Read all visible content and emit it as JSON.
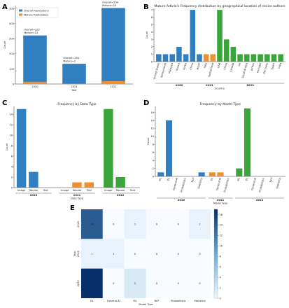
{
  "figure": {
    "panel_letters": [
      "A",
      "B",
      "C",
      "D",
      "E"
    ]
  },
  "chart_data": [
    {
      "id": "A",
      "type": "bar",
      "title": "",
      "xlabel": "Year",
      "ylabel": "Count",
      "categories": [
        "2020",
        "2021",
        "2022"
      ],
      "series": [
        {
          "name": "Overall Publications",
          "values": [
            322,
            134,
            504
          ],
          "color": "#2f7fc1"
        },
        {
          "name": "Mature Publications",
          "values": [
            15,
            2,
            19
          ],
          "color": "#f28e2b"
        }
      ],
      "annotations": [
        [
          "Overall=322",
          "Mature=15"
        ],
        [
          "Overall=134",
          "Mature=2"
        ],
        [
          "Overall=504",
          "Mature=19"
        ]
      ],
      "ylim": [
        0,
        520
      ],
      "yticks": [
        0,
        100,
        200,
        300,
        400,
        500
      ],
      "legend": "top-left"
    },
    {
      "id": "B",
      "type": "bar",
      "title": "Mature Article's Frequency distribution by geographical location of senior authors",
      "xlabel": "Country",
      "ylabel": "Count",
      "ylim": [
        0,
        7.2
      ],
      "yticks": [
        0,
        1,
        2,
        3,
        4,
        5,
        6,
        7
      ],
      "groups": [
        {
          "year": "2020",
          "color": "#2f7fc1",
          "categories": [
            "United States",
            "Netherlands",
            "Malaysia",
            "Russia",
            "Korea",
            "China",
            "Brazil"
          ],
          "values": [
            1,
            1,
            1,
            2,
            1,
            7,
            1
          ]
        },
        {
          "year": "2021",
          "color": "#f28e2b",
          "categories": [
            "Italy",
            "Switzerland"
          ],
          "values": [
            1,
            1
          ]
        },
        {
          "year": "2022",
          "color": "#3aa63a",
          "categories": [
            "USA",
            "China",
            "Canada",
            "UK",
            "Saudi Arabia",
            "Jordan",
            "Portugal",
            "Germany",
            "Spain",
            "India"
          ],
          "values": [
            7,
            3,
            2,
            1,
            1,
            1,
            1,
            1,
            1,
            1
          ]
        }
      ]
    },
    {
      "id": "C",
      "type": "bar",
      "title": "Frequency by Data Type",
      "xlabel": "Data Type",
      "ylabel": "Count",
      "ylim": [
        0,
        15.5
      ],
      "yticks": [
        0,
        2,
        4,
        6,
        8,
        10,
        12,
        14
      ],
      "groups": [
        {
          "year": "2020",
          "color": "#2f7fc1",
          "categories": [
            "Image",
            "Tabular",
            "Text"
          ],
          "values": [
            15,
            3,
            0
          ]
        },
        {
          "year": "2021",
          "color": "#f28e2b",
          "categories": [
            "Image",
            "Tabular",
            "Text"
          ],
          "values": [
            0,
            1,
            1
          ]
        },
        {
          "year": "2022",
          "color": "#3aa63a",
          "categories": [
            "Image",
            "Tabular",
            "Text"
          ],
          "values": [
            15,
            2,
            0
          ]
        }
      ]
    },
    {
      "id": "D",
      "type": "bar",
      "title": "Frequency by Model Type",
      "xlabel": "Model Type",
      "ylabel": "Count",
      "ylim": [
        0,
        17.5
      ],
      "yticks": [
        0,
        2,
        4,
        6,
        8,
        10,
        12,
        14,
        16
      ],
      "groups": [
        {
          "year": "2020",
          "color": "#2f7fc1",
          "categories": [
            "ML",
            "DL",
            "General-AI",
            "Probabilistic",
            "NLP",
            "Statistics"
          ],
          "values": [
            1,
            14,
            0,
            0,
            0,
            1
          ]
        },
        {
          "year": "2021",
          "color": "#f28e2b",
          "categories": [
            "DL",
            "General-AI",
            "Probabilistic"
          ],
          "values": [
            1,
            1,
            0
          ]
        },
        {
          "year": "2022",
          "color": "#3aa63a",
          "categories": [
            "ML",
            "DL",
            "General-AI",
            "Probabilistic",
            "NLP",
            "Statistics"
          ],
          "values": [
            2,
            17,
            0,
            0,
            0,
            0
          ]
        }
      ]
    },
    {
      "id": "E",
      "type": "heatmap",
      "title": "",
      "xlabel": "Model Type",
      "ylabel": "Year",
      "columns": [
        "DL",
        "General-AI",
        "ML",
        "NLP",
        "Probabilistic",
        "Statistics"
      ],
      "rows": [
        "2020",
        "2021",
        "2022"
      ],
      "values": [
        [
          14,
          0,
          1,
          0,
          0,
          1
        ],
        [
          1,
          1,
          0,
          0,
          0,
          0
        ],
        [
          17,
          0,
          2,
          0,
          0,
          0
        ]
      ],
      "colorbar_ticks": [
        0,
        2,
        4,
        6,
        8,
        10,
        12,
        14,
        16
      ],
      "vmax": 17
    }
  ]
}
